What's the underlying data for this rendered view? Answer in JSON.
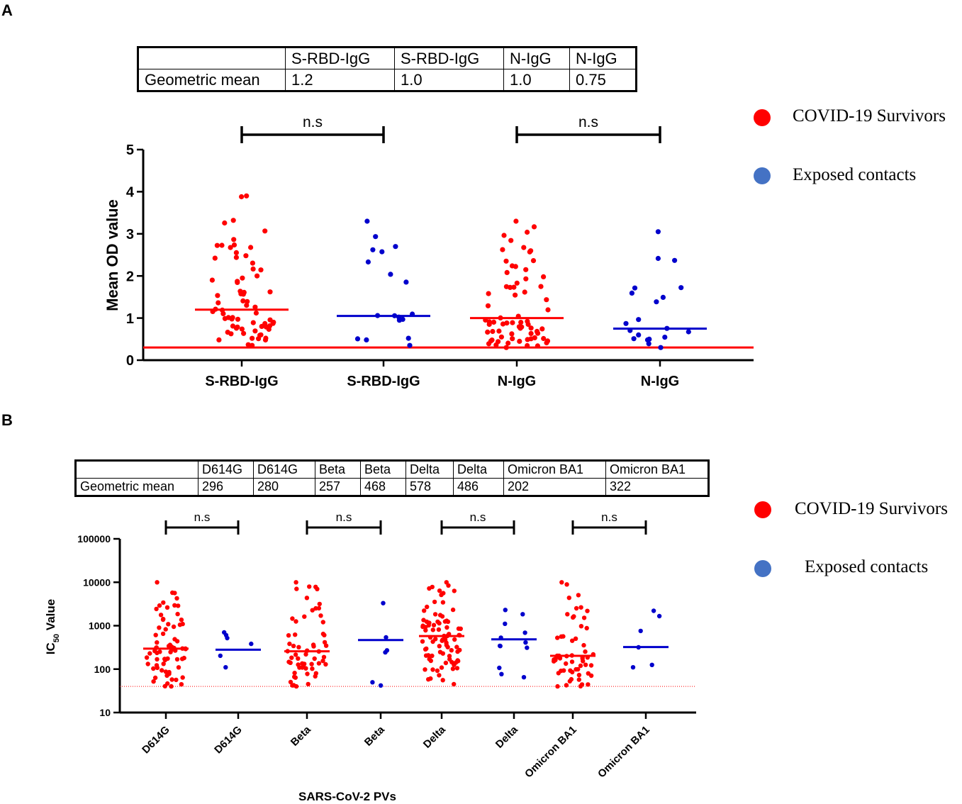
{
  "panels": {
    "a": "A",
    "b": "B"
  },
  "colors": {
    "survivors": "#ff0000",
    "contacts": "#0000cc",
    "legend_contacts": "#4472c4",
    "threshold": "#ff0000"
  },
  "tableA": {
    "header": [
      "",
      "S-RBD-IgG",
      "S-RBD-IgG",
      "N-IgG",
      "N-IgG"
    ],
    "row": [
      "Geometric mean",
      "1.2",
      "1.0",
      "1.0",
      "0.75"
    ]
  },
  "tableB": {
    "header": [
      "",
      "D614G",
      "D614G",
      "Beta",
      "Beta",
      "Delta",
      "Delta",
      "Omicron BA1",
      "Omicron BA1"
    ],
    "row": [
      "Geometric mean",
      "296",
      "280",
      "257",
      "468",
      "578",
      "486",
      "202",
      "322"
    ]
  },
  "legendA": {
    "survivors": "COVID-19 Survivors",
    "contacts": "Exposed contacts"
  },
  "legendB": {
    "survivors": "COVID-19 Survivors",
    "contacts": "Exposed contacts"
  },
  "chart_data": [
    {
      "type": "scatter",
      "title": "",
      "ylabel": "Mean OD value",
      "xlabel": "",
      "ylim": [
        0,
        5
      ],
      "yticks": [
        0,
        1,
        2,
        3,
        4,
        5
      ],
      "categories": [
        "S-RBD-IgG",
        "S-RBD-IgG",
        "N-IgG",
        "N-IgG"
      ],
      "groups": [
        "COVID-19 Survivors",
        "Exposed contacts",
        "COVID-19 Survivors",
        "Exposed contacts"
      ],
      "geometric_means": [
        1.2,
        1.05,
        1.0,
        0.75
      ],
      "threshold": 0.3,
      "point_counts": [
        70,
        18,
        70,
        20
      ],
      "ranges": [
        [
          0.35,
          3.9
        ],
        [
          0.35,
          3.3
        ],
        [
          0.3,
          3.3
        ],
        [
          0.3,
          3.05
        ]
      ],
      "comparisons": [
        {
          "from": 0,
          "to": 1,
          "label": "n.s"
        },
        {
          "from": 2,
          "to": 3,
          "label": "n.s"
        }
      ]
    },
    {
      "type": "scatter",
      "title": "",
      "ylabel": "IC50 Value",
      "xlabel": "SARS-CoV-2 PVs",
      "yscale": "log",
      "ylim": [
        10,
        100000
      ],
      "yticks": [
        10,
        100,
        1000,
        10000,
        100000
      ],
      "ytick_labels": [
        "10",
        "100",
        "1000",
        "10000",
        "100000"
      ],
      "categories": [
        "D614G",
        "D614G",
        "Beta",
        "Beta",
        "Delta",
        "Delta",
        "Omicron BA1",
        "Omicron BA1"
      ],
      "groups": [
        "COVID-19 Survivors",
        "Exposed contacts",
        "COVID-19 Survivors",
        "Exposed contacts",
        "COVID-19 Survivors",
        "Exposed contacts",
        "COVID-19 Survivors",
        "Exposed contacts"
      ],
      "geometric_means": [
        296,
        280,
        257,
        468,
        578,
        486,
        202,
        322
      ],
      "threshold": 40,
      "point_counts": [
        70,
        6,
        60,
        6,
        85,
        12,
        60,
        6
      ],
      "ranges": [
        [
          40,
          10000
        ],
        [
          110,
          700
        ],
        [
          40,
          10000
        ],
        [
          42,
          3300
        ],
        [
          45,
          10000
        ],
        [
          65,
          2300
        ],
        [
          40,
          10000
        ],
        [
          110,
          2200
        ]
      ],
      "comparisons": [
        {
          "from": 0,
          "to": 1,
          "label": "n.s"
        },
        {
          "from": 2,
          "to": 3,
          "label": "n.s"
        },
        {
          "from": 4,
          "to": 5,
          "label": "n.s"
        },
        {
          "from": 6,
          "to": 7,
          "label": "n.s"
        }
      ]
    }
  ]
}
